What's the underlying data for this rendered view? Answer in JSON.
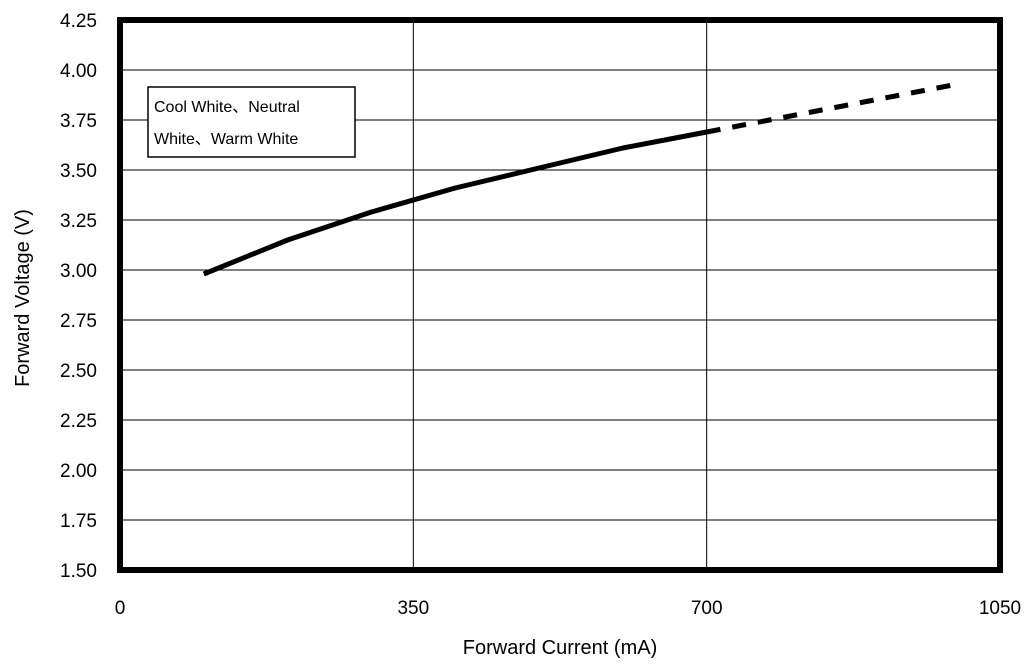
{
  "chart_data": {
    "type": "line",
    "xlabel": "Forward Current (mA)",
    "ylabel": "Forward Voltage (V)",
    "xlim": [
      0,
      1050
    ],
    "ylim": [
      1.5,
      4.25
    ],
    "xticks": [
      0,
      350,
      700,
      1050
    ],
    "yticks": [
      1.5,
      1.75,
      2.0,
      2.25,
      2.5,
      2.75,
      3.0,
      3.25,
      3.5,
      3.75,
      4.0,
      4.25
    ],
    "grid": true,
    "series": [
      {
        "name": "Cool White、Neutral White、Warm White",
        "style": "solid",
        "x": [
          100,
          200,
          300,
          400,
          500,
          600,
          700
        ],
        "y": [
          2.98,
          3.15,
          3.29,
          3.41,
          3.51,
          3.61,
          3.69
        ]
      },
      {
        "style": "dashed",
        "x": [
          700,
          800,
          900,
          1000
        ],
        "y": [
          3.69,
          3.77,
          3.85,
          3.93
        ]
      }
    ],
    "legend": {
      "lines": [
        "Cool White、Neutral",
        "White、Warm White"
      ],
      "placement": "top-left"
    },
    "ytick_labels": [
      "1.50",
      "1.75",
      "2.00",
      "2.25",
      "2.50",
      "2.75",
      "3.00",
      "3.25",
      "3.50",
      "3.75",
      "4.00",
      "4.25"
    ],
    "xtick_labels": [
      "0",
      "350",
      "700",
      "1050"
    ],
    "colors": {
      "line": "#000000",
      "grid": "#000000",
      "frame": "#000000"
    }
  }
}
